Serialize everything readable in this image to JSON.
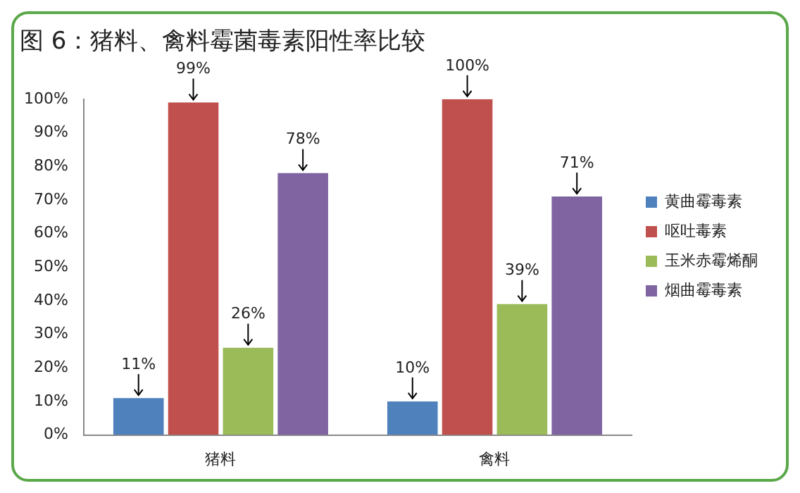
{
  "chart_data": {
    "type": "bar",
    "title": "图 6：猪料、禽料霉菌毒素阳性率比较",
    "categories": [
      "猪料",
      "禽料"
    ],
    "series": [
      {
        "name": "黄曲霉毒素",
        "color": "#4f81bd",
        "values": [
          11,
          10
        ],
        "value_labels": [
          "11%",
          "10%"
        ]
      },
      {
        "name": "呕吐毒素",
        "color": "#c0504d",
        "values": [
          99,
          100
        ],
        "value_labels": [
          "99%",
          "100%"
        ]
      },
      {
        "name": "玉米赤霉烯酮",
        "color": "#9bbb59",
        "values": [
          26,
          39
        ],
        "value_labels": [
          "26%",
          "39%"
        ]
      },
      {
        "name": "烟曲霉毒素",
        "color": "#8064a2",
        "values": [
          78,
          71
        ],
        "value_labels": [
          "78%",
          "71%"
        ]
      }
    ],
    "ylim": [
      0,
      100
    ],
    "yticks": [
      {
        "value": 0,
        "label": "0%"
      },
      {
        "value": 10,
        "label": "10%"
      },
      {
        "value": 20,
        "label": "20%"
      },
      {
        "value": 30,
        "label": "30%"
      },
      {
        "value": 40,
        "label": "40%"
      },
      {
        "value": 50,
        "label": "50%"
      },
      {
        "value": 60,
        "label": "60%"
      },
      {
        "value": 70,
        "label": "70%"
      },
      {
        "value": 80,
        "label": "80%"
      },
      {
        "value": 90,
        "label": "90%"
      },
      {
        "value": 100,
        "label": "100%"
      }
    ],
    "grid": false,
    "legend": "right"
  }
}
